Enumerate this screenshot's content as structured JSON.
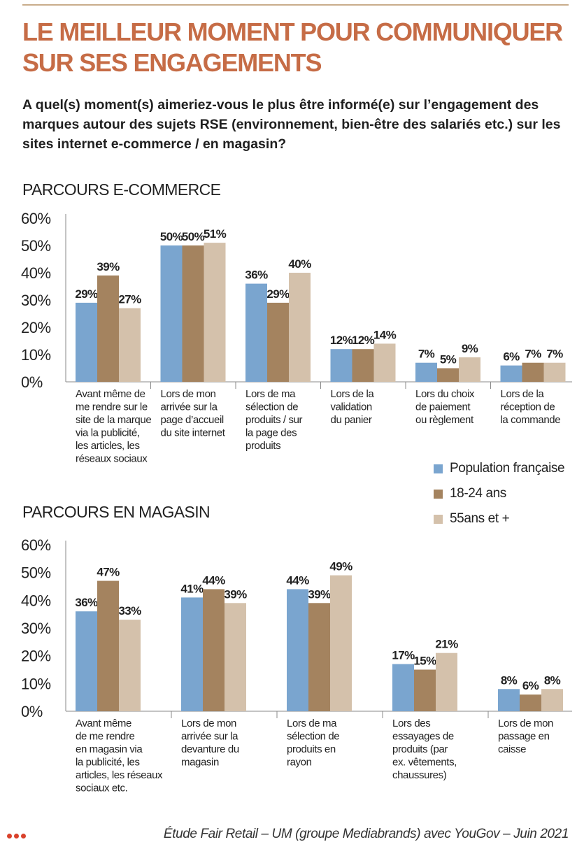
{
  "header": {
    "title": "LE MEILLEUR MOMENT POUR COMMUNIQUER SUR SES ENGAGEMENTS",
    "subtitle": "A quel(s) moment(s) aimeriez-vous le plus être informé(e) sur l’engagement des marques autour des sujets RSE (environnement, bien-être des salariés etc.) sur les sites internet e-commerce / en magasin?"
  },
  "colors": {
    "title": "#c66c46",
    "population_francaise": "#7aa5cf",
    "age_18_24": "#a4835f",
    "age_55_plus": "#d4c1ab",
    "rule": "#c9ad8b"
  },
  "legend": {
    "items": [
      {
        "label": "Population française",
        "color": "#7aa5cf"
      },
      {
        "label": "18-24 ans",
        "color": "#a4835f"
      },
      {
        "label": "55ans et +",
        "color": "#d4c1ab"
      }
    ]
  },
  "chart_data": [
    {
      "type": "bar",
      "title": "PARCOURS E-COMMERCE",
      "yticks": [
        "60%",
        "50%",
        "40%",
        "30%",
        "20%",
        "10%",
        "0%"
      ],
      "ylim": [
        0,
        60
      ],
      "grid": false,
      "categories": [
        [
          "Avant même de",
          "me rendre sur le",
          "site de la marque",
          "via la publicité,",
          "les articles, les",
          "réseaux sociaux"
        ],
        [
          "Lors de mon",
          "arrivée sur la",
          "page d’accueil",
          "du site internet"
        ],
        [
          "Lors de ma",
          "sélection de",
          "produits / sur",
          "la page des",
          "produits"
        ],
        [
          "Lors de la",
          "validation",
          "du panier"
        ],
        [
          "Lors du choix",
          "de paiement",
          "ou règlement"
        ],
        [
          "Lors de la",
          "réception de",
          "la commande"
        ]
      ],
      "series": [
        {
          "name": "Population française",
          "color": "#7aa5cf",
          "values": [
            29,
            50,
            36,
            12,
            7,
            6
          ],
          "labels": [
            "29%",
            "50%",
            "36%",
            "12%",
            "7%",
            "6%"
          ]
        },
        {
          "name": "18-24 ans",
          "color": "#a4835f",
          "values": [
            39,
            50,
            29,
            12,
            5,
            7
          ],
          "labels": [
            "39%",
            "50%",
            "29%",
            "12%",
            "5%",
            "7%"
          ]
        },
        {
          "name": "55ans et +",
          "color": "#d4c1ab",
          "values": [
            27,
            51,
            40,
            14,
            9,
            7
          ],
          "labels": [
            "27%",
            "51%",
            "40%",
            "14%",
            "9%",
            "7%"
          ]
        }
      ]
    },
    {
      "type": "bar",
      "title": "PARCOURS EN MAGASIN",
      "yticks": [
        "60%",
        "50%",
        "40%",
        "30%",
        "20%",
        "10%",
        "0%"
      ],
      "ylim": [
        0,
        60
      ],
      "grid": false,
      "categories": [
        [
          "Avant même",
          "de me rendre",
          "en magasin via",
          "la publicité, les",
          "articles, les réseaux",
          "sociaux etc."
        ],
        [
          "Lors de mon",
          "arrivée sur la",
          "devanture du",
          "magasin"
        ],
        [
          "Lors de ma",
          "sélection de",
          "produits en",
          "rayon"
        ],
        [
          "Lors des",
          "essayages de",
          "produits (par",
          "ex. vêtements,",
          "chaussures)"
        ],
        [
          "Lors de mon",
          "passage en",
          "caisse"
        ]
      ],
      "series": [
        {
          "name": "Population française",
          "color": "#7aa5cf",
          "values": [
            36,
            41,
            44,
            17,
            8
          ],
          "labels": [
            "36%",
            "41%",
            "44%",
            "17%",
            "8%"
          ]
        },
        {
          "name": "18-24 ans",
          "color": "#a4835f",
          "values": [
            47,
            44,
            39,
            15,
            6
          ],
          "labels": [
            "47%",
            "44%",
            "39%",
            "15%",
            "6%"
          ]
        },
        {
          "name": "55ans et +",
          "color": "#d4c1ab",
          "values": [
            33,
            39,
            49,
            21,
            8
          ],
          "labels": [
            "33%",
            "39%",
            "49%",
            "21%",
            "8%"
          ]
        }
      ]
    }
  ],
  "footer": {
    "source": "Étude Fair Retail – UM (groupe Mediabrands) avec YouGov – Juin 2021"
  }
}
